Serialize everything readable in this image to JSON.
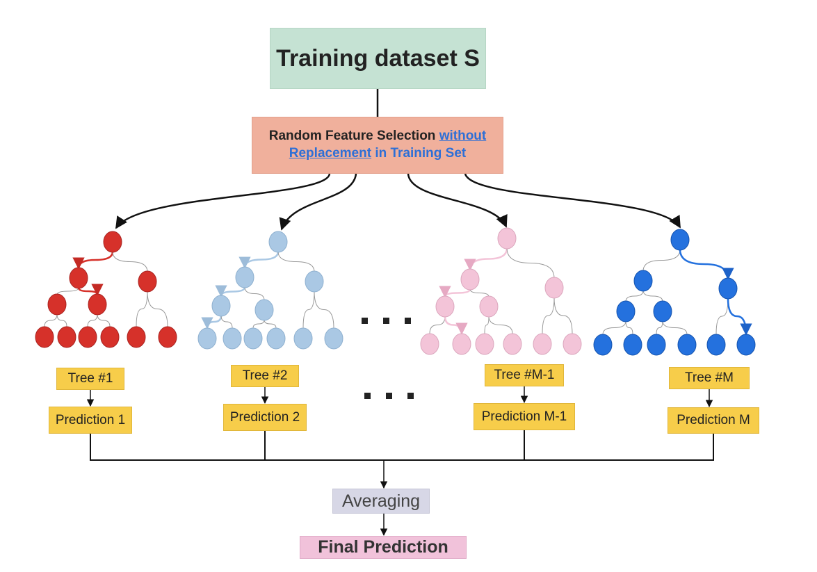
{
  "title": "Training dataset S",
  "selection": {
    "part1": "Random Feature Selection ",
    "link": "without Replacement",
    "part2": " in Training Set"
  },
  "trees": [
    {
      "label": "Tree #1",
      "prediction": "Prediction 1",
      "color": "#d6312a",
      "stroke": "#a82320"
    },
    {
      "label": "Tree #2",
      "prediction": "Prediction 2",
      "color": "#aac8e4",
      "stroke": "#8eb0cf"
    },
    {
      "label": "Tree #M-1",
      "prediction": "Prediction M-1",
      "color": "#f3c4d8",
      "stroke": "#dba6bd"
    },
    {
      "label": "Tree #M",
      "prediction": "Prediction M",
      "color": "#2471de",
      "stroke": "#1553ad"
    }
  ],
  "ellipsis": "...",
  "averaging": "Averaging",
  "final": "Final Prediction"
}
